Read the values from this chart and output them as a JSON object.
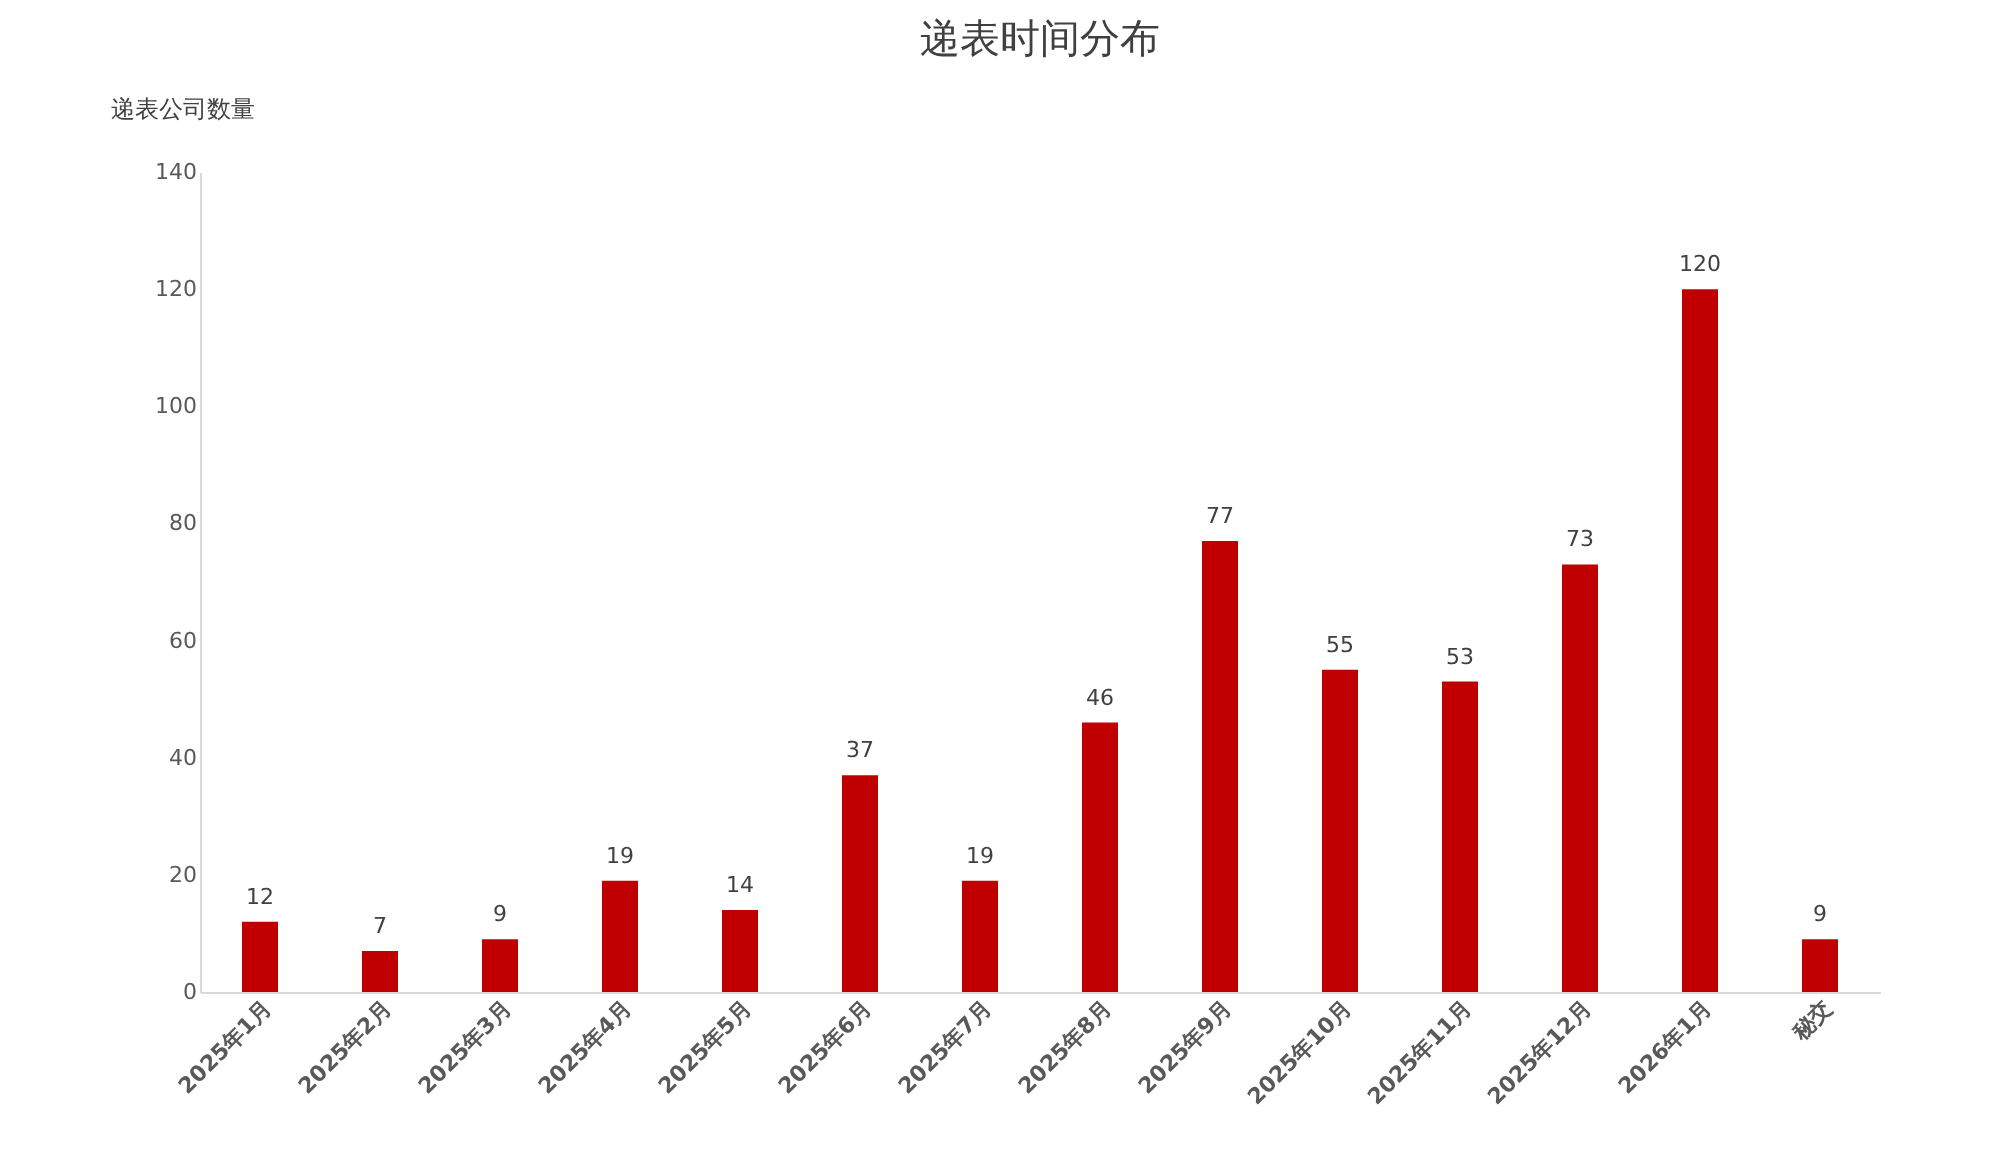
{
  "chart_data": {
    "type": "bar",
    "title": "递表时间分布",
    "ylabel": "递表公司数量",
    "categories": [
      "2025年1月",
      "2025年2月",
      "2025年3月",
      "2025年4月",
      "2025年5月",
      "2025年6月",
      "2025年7月",
      "2025年8月",
      "2025年9月",
      "2025年10月",
      "2025年11月",
      "2025年12月",
      "2026年1月",
      "秘交"
    ],
    "values": [
      12,
      7,
      9,
      19,
      14,
      37,
      19,
      46,
      77,
      55,
      53,
      73,
      120,
      9
    ],
    "color": "#c00000",
    "ylim": [
      0,
      140
    ],
    "yticks": [
      0,
      20,
      40,
      60,
      80,
      100,
      120,
      140
    ],
    "grid": false,
    "data_labels": true
  }
}
